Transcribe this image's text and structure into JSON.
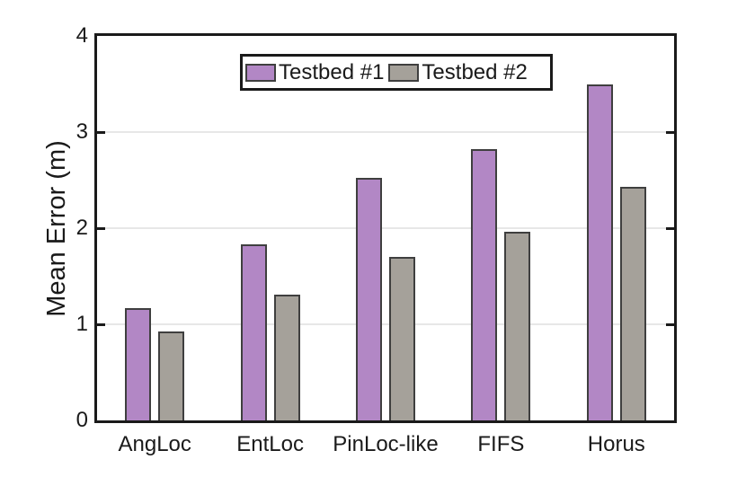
{
  "colors": {
    "axis": "#1a1a1a",
    "grid": "#e7e7e7",
    "bar_edge": "#3f3f3f",
    "text": "#1a1a1a",
    "background": "#ffffff"
  },
  "chart_data": {
    "type": "bar",
    "title": "",
    "xlabel": "",
    "ylabel": "Mean Error (m)",
    "categories": [
      "AngLoc",
      "EntLoc",
      "PinLoc-like",
      "FIFS",
      "Horus"
    ],
    "series": [
      {
        "name": "Testbed #1",
        "color": "#b287c5",
        "values": [
          1.17,
          1.83,
          2.52,
          2.82,
          3.5
        ]
      },
      {
        "name": "Testbed #2",
        "color": "#a5a19a",
        "values": [
          0.93,
          1.31,
          1.7,
          1.96,
          2.43
        ]
      }
    ],
    "ylim": [
      0,
      4
    ],
    "yticks": [
      0,
      1,
      2,
      3,
      4
    ],
    "gridline_values": [
      1,
      2,
      3
    ],
    "grid": "horizontal",
    "legend_position": "top-center-inside"
  }
}
